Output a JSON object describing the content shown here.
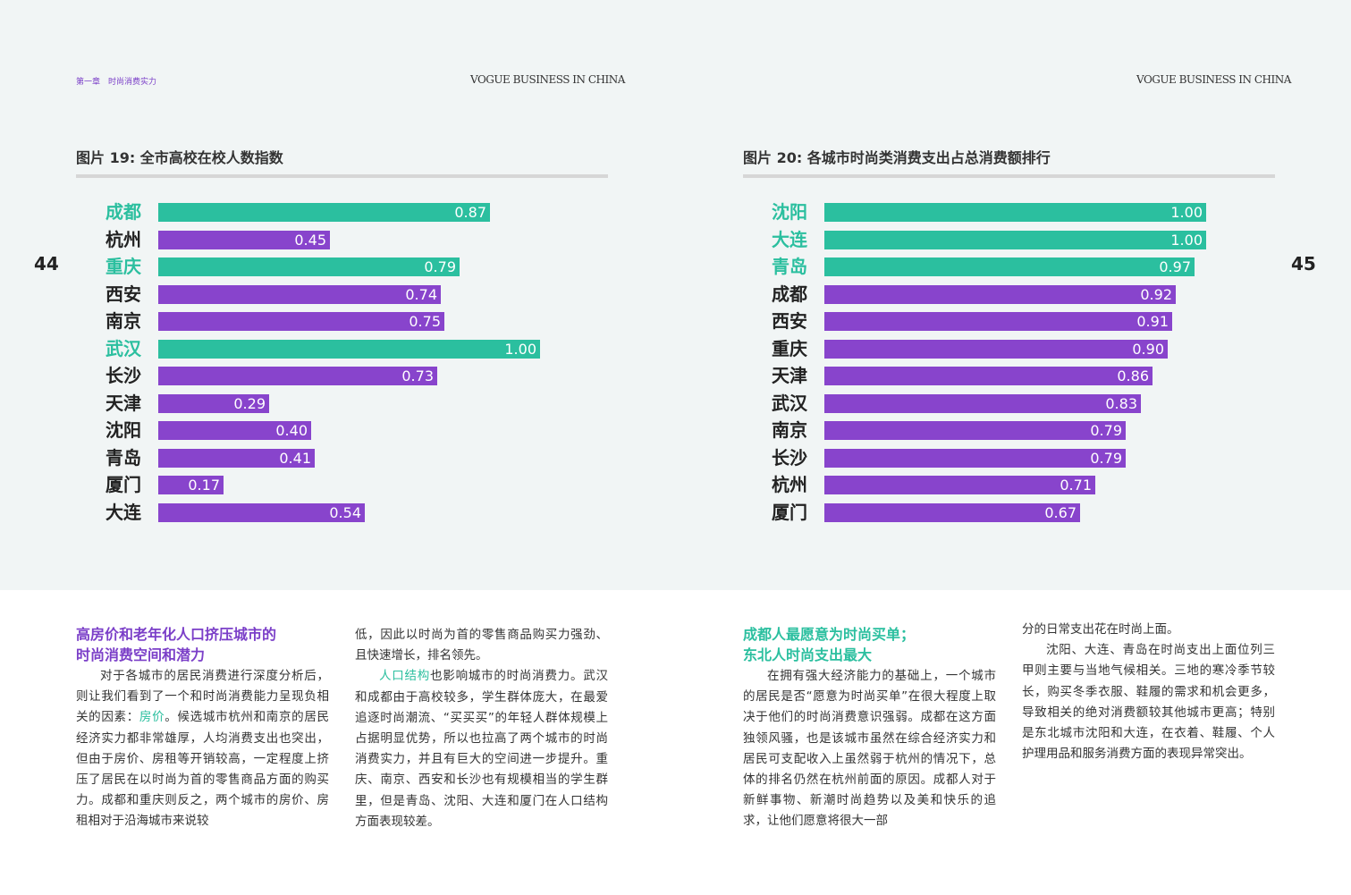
{
  "header": {
    "chapter": "第一章　时尚消费实力",
    "brand_left": "VOGUE BUSINESS IN CHINA",
    "brand_right": "VOGUE BUSINESS IN CHINA",
    "page_left": "44",
    "page_right": "45"
  },
  "colors": {
    "teal": "#2bbf9f",
    "purple": "#8844cc",
    "heading_purple": "#7b3fc8"
  },
  "chart_data": [
    {
      "type": "bar",
      "orientation": "horizontal",
      "title": "图片 19: 全市高校在校人数指数",
      "categories": [
        "成都",
        "杭州",
        "重庆",
        "西安",
        "南京",
        "武汉",
        "长沙",
        "天津",
        "沈阳",
        "青岛",
        "厦门",
        "大连"
      ],
      "values": [
        0.87,
        0.45,
        0.79,
        0.74,
        0.75,
        1.0,
        0.73,
        0.29,
        0.4,
        0.41,
        0.17,
        0.54
      ],
      "labels": [
        "0.87",
        "0.45",
        "0.79",
        "0.74",
        "0.75",
        "1.00",
        "0.73",
        "0.29",
        "0.40",
        "0.41",
        "0.17",
        "0.54"
      ],
      "highlight": [
        true,
        false,
        true,
        false,
        false,
        true,
        false,
        false,
        false,
        false,
        false,
        false
      ],
      "xlim": [
        0,
        1
      ]
    },
    {
      "type": "bar",
      "orientation": "horizontal",
      "title": "图片 20: 各城市时尚类消费支出占总消费额排行",
      "categories": [
        "沈阳",
        "大连",
        "青岛",
        "成都",
        "西安",
        "重庆",
        "天津",
        "武汉",
        "南京",
        "长沙",
        "杭州",
        "厦门"
      ],
      "values": [
        1.0,
        1.0,
        0.97,
        0.92,
        0.91,
        0.9,
        0.86,
        0.83,
        0.79,
        0.79,
        0.71,
        0.67
      ],
      "labels": [
        "1.00",
        "1.00",
        "0.97",
        "0.92",
        "0.91",
        "0.90",
        "0.86",
        "0.83",
        "0.79",
        "0.79",
        "0.71",
        "0.67"
      ],
      "highlight": [
        true,
        true,
        true,
        false,
        false,
        false,
        false,
        false,
        false,
        false,
        false,
        false
      ],
      "xlim": [
        0,
        1
      ]
    }
  ],
  "left_section": {
    "heading_line1": "高房价和老年化人口挤压城市的",
    "heading_line2": "时尚消费空间和潜力",
    "col1_p1_a": "对于各城市的居民消费进行深度分析后，则让我们看到了一个和时尚消费能力呈现负相关的因素：",
    "col1_p1_hl": "房价",
    "col1_p1_b": "。候选城市杭州和南京的居民经济实力都非常雄厚，人均消费支出也突出，但由于房价、房租等开销较高，一定程度上挤压了居民在以时尚为首的零售商品方面的购买力。成都和重庆则反之，两个城市的房价、房租相对于沿海城市来说较",
    "col2_p1": "低，因此以时尚为首的零售商品购买力强劲、且快速增长，排名领先。",
    "col2_p2_hl": "人口结构",
    "col2_p2_b": "也影响城市的时尚消费力。武汉和成都由于高校较多，学生群体庞大，在最爱追逐时尚潮流、“买买买”的年轻人群体规模上占据明显优势，所以也拉高了两个城市的时尚消费实力，并且有巨大的空间进一步提升。重庆、南京、西安和长沙也有规模相当的学生群里，但是青岛、沈阳、大连和厦门在人口结构方面表现较差。"
  },
  "right_section": {
    "heading_line1": "成都人最愿意为时尚买单；",
    "heading_line2": "东北人时尚支出最大",
    "col1_p1": "在拥有强大经济能力的基础上，一个城市的居民是否“愿意为时尚买单”在很大程度上取决于他们的时尚消费意识强弱。成都在这方面独领风骚，也是该城市虽然在综合经济实力和居民可支配收入上虽然弱于杭州的情况下，总体的排名仍然在杭州前面的原因。成都人对于新鲜事物、新潮时尚趋势以及美和快乐的追求，让他们愿意将很大一部",
    "col2_p1": "分的日常支出花在时尚上面。",
    "col2_p2": "沈阳、大连、青岛在时尚支出上面位列三甲则主要与当地气候相关。三地的寒冷季节较长，购买冬季衣服、鞋履的需求和机会更多，导致相关的绝对消费额较其他城市更高；特别是东北城市沈阳和大连，在衣着、鞋履、个人护理用品和服务消费方面的表现异常突出。"
  }
}
